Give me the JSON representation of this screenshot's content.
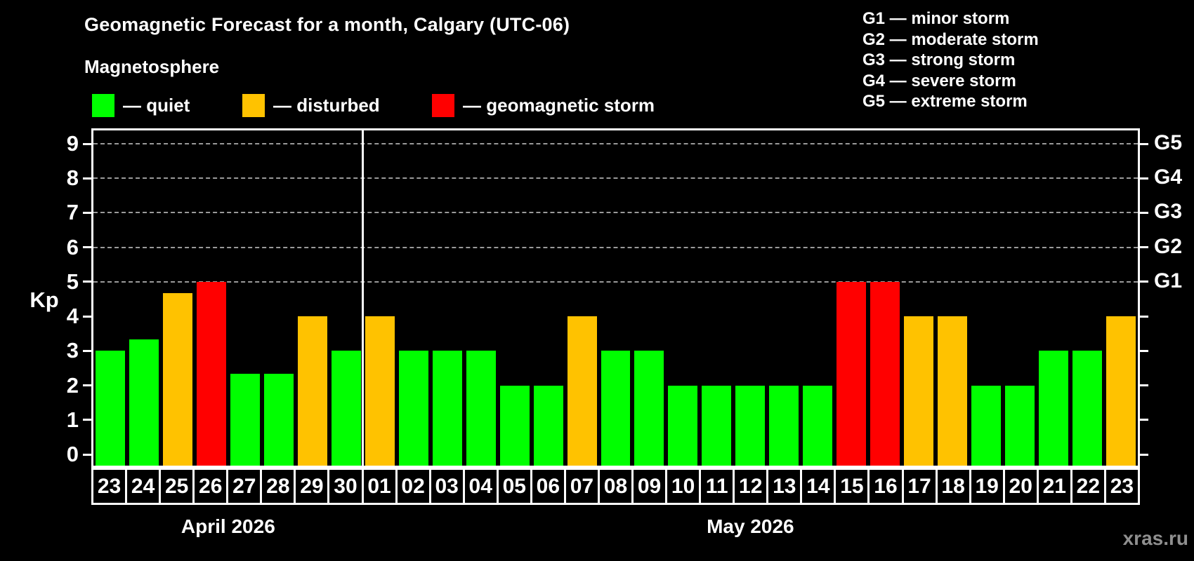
{
  "header": {
    "title": "Geomagnetic Forecast for a month, Calgary (UTC-06)",
    "subtitle": "Magnetosphere"
  },
  "legend": {
    "items": [
      {
        "name": "quiet",
        "label": "— quiet",
        "color": "#00ff00"
      },
      {
        "name": "disturbed",
        "label": "— disturbed",
        "color": "#ffc200"
      },
      {
        "name": "storm",
        "label": "— geomagnetic storm",
        "color": "#ff0000"
      }
    ]
  },
  "g_scale_legend": {
    "items": [
      "G1 — minor storm",
      "G2 — moderate storm",
      "G3 — strong storm",
      "G4 — severe storm",
      "G5 — extreme storm"
    ]
  },
  "watermark": "xras.ru",
  "chart_data": {
    "type": "bar",
    "title": "Geomagnetic Forecast for a month, Calgary (UTC-06)",
    "subtitle": "Magnetosphere",
    "ylabel": "Kp",
    "ylim": [
      0,
      9
    ],
    "y_ticks": [
      0,
      1,
      2,
      3,
      4,
      5,
      6,
      7,
      8,
      9
    ],
    "gridlines_at_kp": [
      5,
      6,
      7,
      8,
      9
    ],
    "right_axis_labels": [
      {
        "label": "G1",
        "kp": 5
      },
      {
        "label": "G2",
        "kp": 6
      },
      {
        "label": "G3",
        "kp": 7
      },
      {
        "label": "G4",
        "kp": 8
      },
      {
        "label": "G5",
        "kp": 9
      }
    ],
    "months": [
      {
        "label": "April 2026",
        "days": 8
      },
      {
        "label": "May 2026",
        "days": 23
      }
    ],
    "categories": [
      "23",
      "24",
      "25",
      "26",
      "27",
      "28",
      "29",
      "30",
      "01",
      "02",
      "03",
      "04",
      "05",
      "06",
      "07",
      "08",
      "09",
      "10",
      "11",
      "12",
      "13",
      "14",
      "15",
      "16",
      "17",
      "18",
      "19",
      "20",
      "21",
      "22",
      "23"
    ],
    "values": [
      3,
      3.33,
      4.67,
      5,
      2.33,
      2.33,
      4,
      3,
      4,
      3,
      3,
      3,
      2,
      2,
      4,
      3,
      3,
      2,
      2,
      2,
      2,
      2,
      5,
      5,
      4,
      4,
      2,
      2,
      3,
      3,
      4
    ],
    "statuses": [
      "quiet",
      "quiet",
      "disturbed",
      "storm",
      "quiet",
      "quiet",
      "disturbed",
      "quiet",
      "disturbed",
      "quiet",
      "quiet",
      "quiet",
      "quiet",
      "quiet",
      "disturbed",
      "quiet",
      "quiet",
      "quiet",
      "quiet",
      "quiet",
      "quiet",
      "quiet",
      "storm",
      "storm",
      "disturbed",
      "disturbed",
      "quiet",
      "quiet",
      "quiet",
      "quiet",
      "disturbed"
    ],
    "status_colors": {
      "quiet": "#00ff00",
      "disturbed": "#ffc200",
      "storm": "#ff0000"
    },
    "legend_position": "top-left"
  }
}
